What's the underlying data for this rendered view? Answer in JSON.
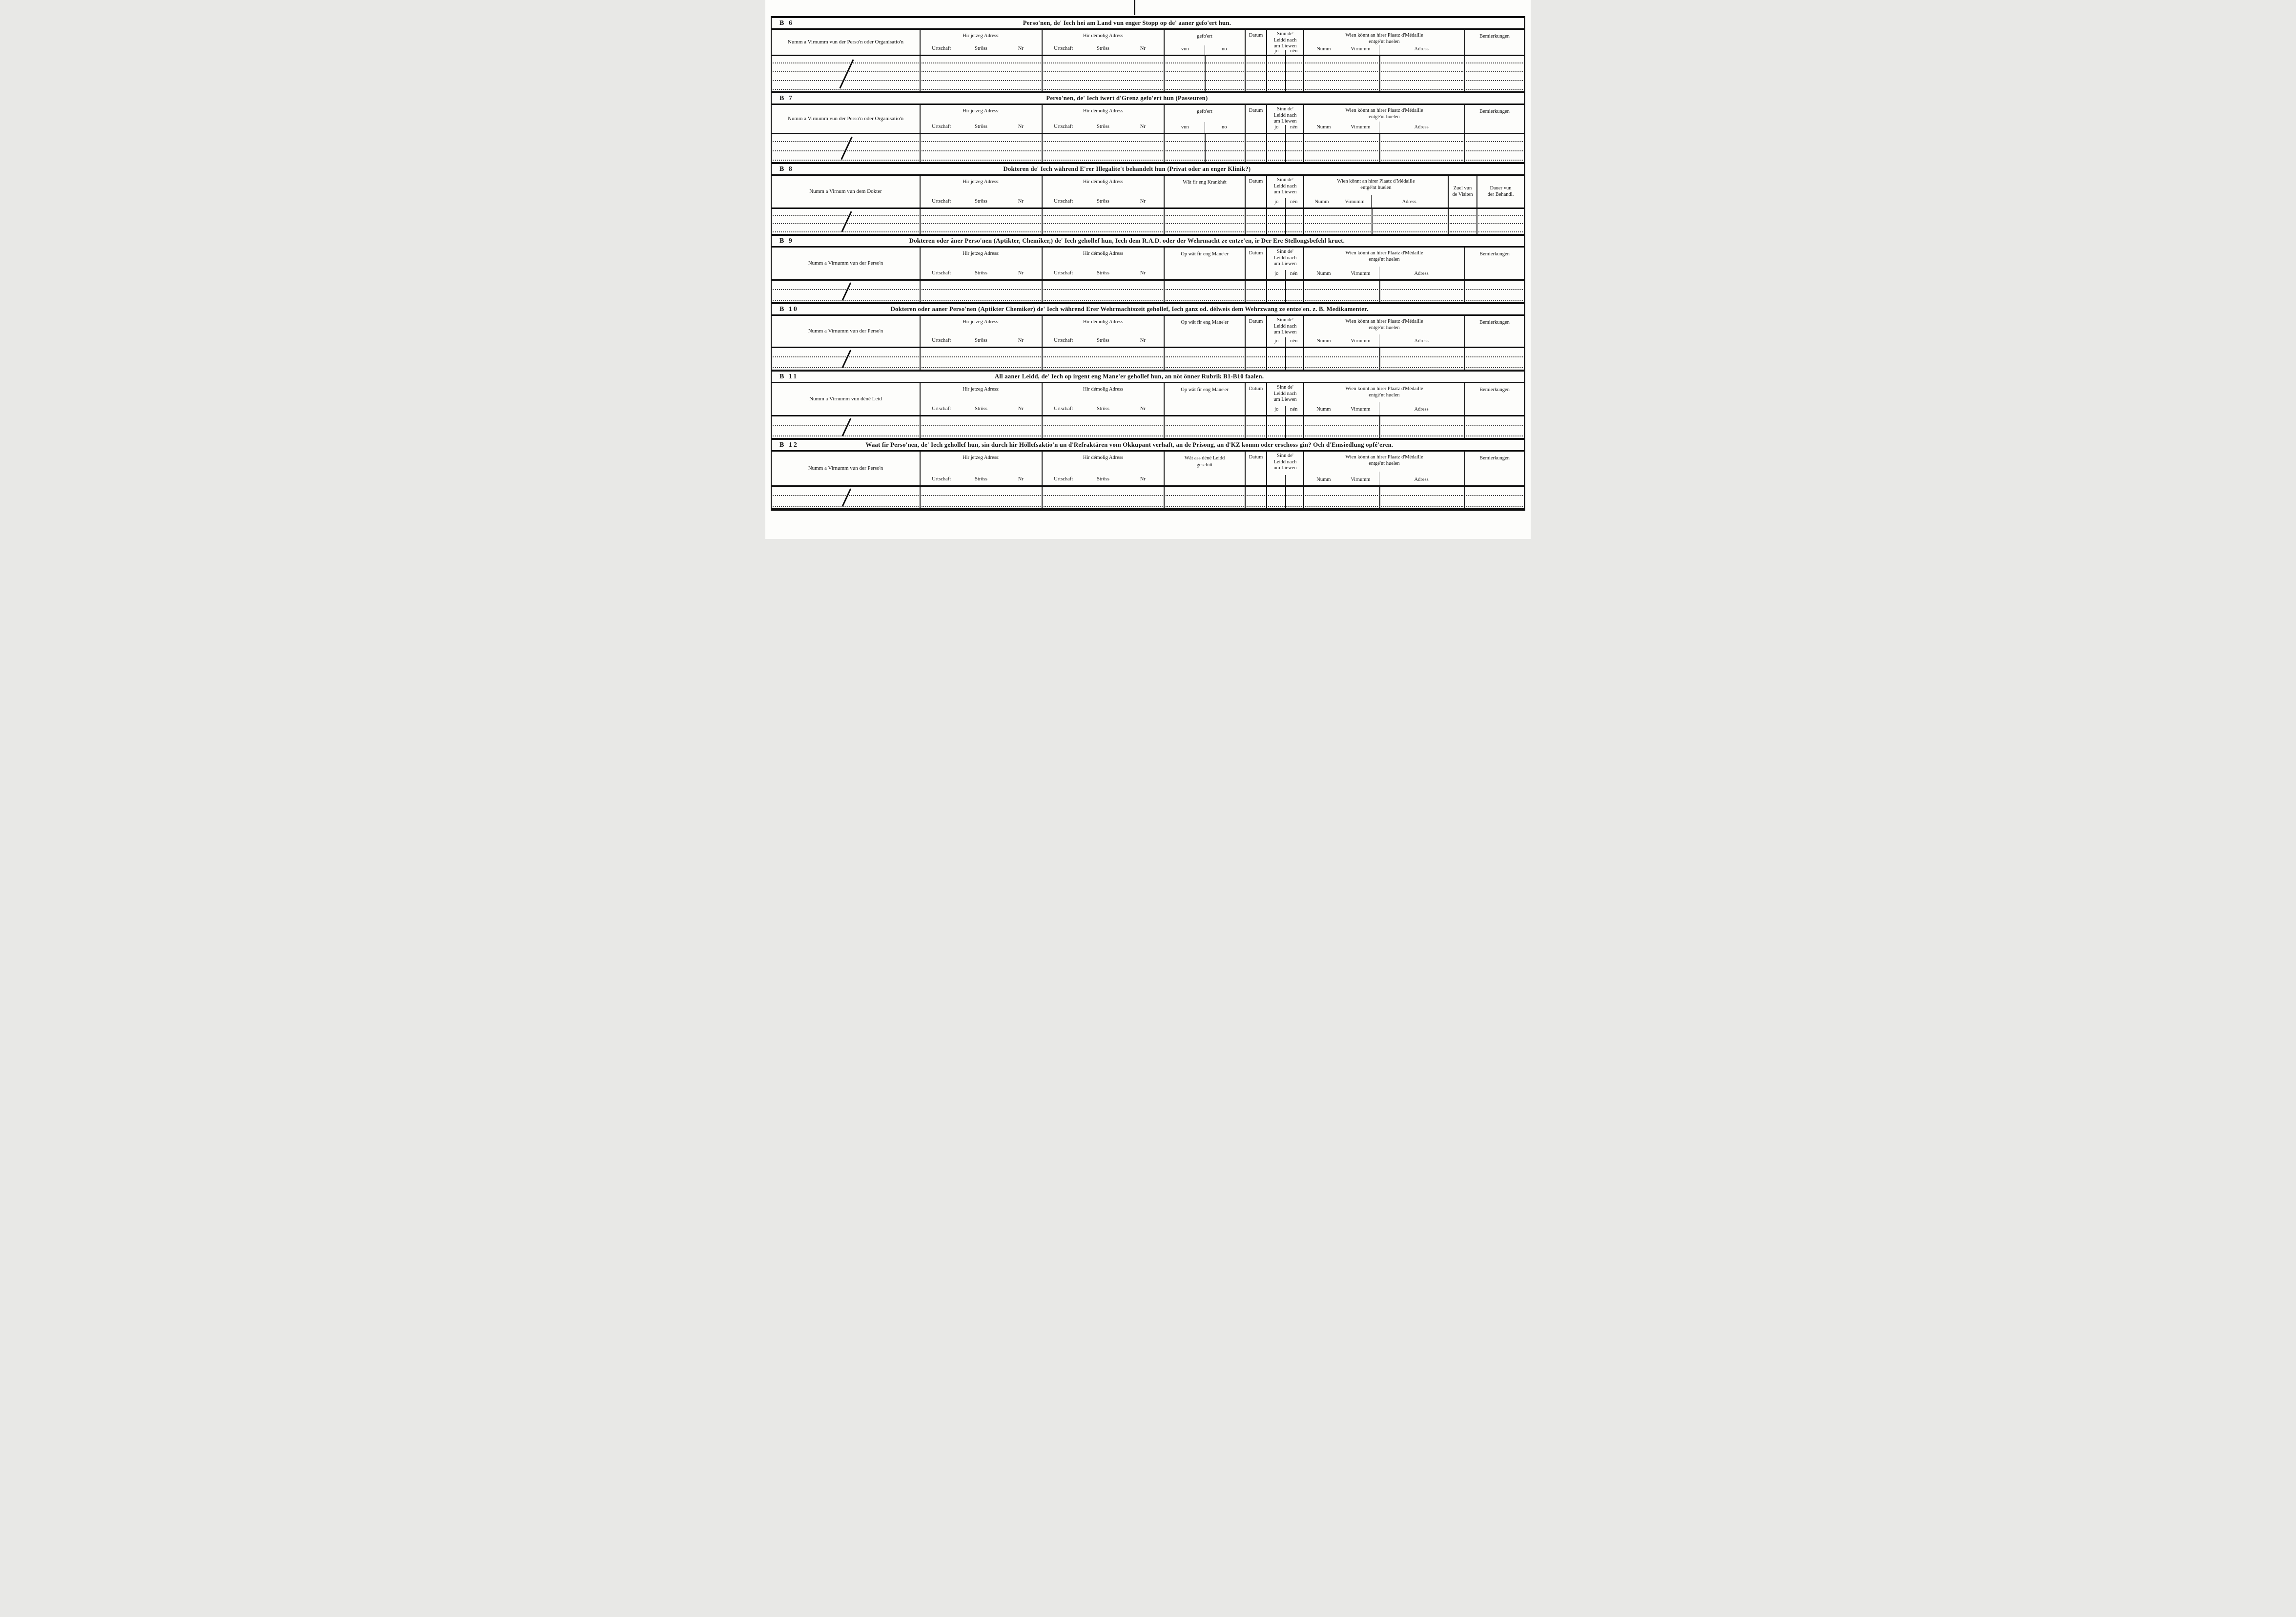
{
  "document": {
    "kind": "scanned questionnaire form",
    "language": "Luxembourgish",
    "ink_color": "#0f0f0f",
    "paper_color": "#fdfdfb"
  },
  "common": {
    "address_now": "Hir jetzeg Adress:",
    "address_former": "Hir démolig Adress",
    "address_sub": [
      "Urtschaft",
      "Strôss",
      "Nr"
    ],
    "datum": "Datum",
    "sinn_lines": [
      "Sinn de'",
      "Leidd nach",
      "um Liewen"
    ],
    "jo": "jo",
    "nen": "nén",
    "wien_lines": [
      "Wien könnt an hirer Plaatz d'Médaille",
      "entgé'nt huelen"
    ],
    "wien_sub": [
      "Numm",
      "Virnumm",
      "Adress"
    ],
    "bemierkungen": "Bemierkungen",
    "zuel_lines": [
      "Zuel vun",
      "de Visiten"
    ],
    "dauer_lines": [
      "Dauer vun",
      "der Behandl."
    ]
  },
  "sections": [
    {
      "id": "B 6",
      "title": "Perso'nen, de' Iech hei am Land vun enger Stopp op de' aaner gefo'ert hun.",
      "left_label": "Numm a Virnumm vun der Perso'n oder Organisatio'n",
      "col4": {
        "lines": [
          "gefo'ert"
        ],
        "sub": [
          "vun",
          "no"
        ]
      },
      "jo_nen": true
    },
    {
      "id": "B 7",
      "title": "Perso'nen, de' Iech iwert d'Grenz gefo'ert hun (Passeuren)",
      "left_label": "Numm a Virnumm vun der Perso'n oder Organisatio'n",
      "col4": {
        "lines": [
          "gefo'ert"
        ],
        "sub": [
          "vun",
          "no"
        ]
      },
      "jo_nen": true
    },
    {
      "id": "B 8",
      "title": "Dokteren de' Iech während E'rer Illegalite't behandelt hun (Privat oder an enger Klinik?)",
      "left_label": "Numm a Virnum vun dem Dokter",
      "col4": {
        "lines": [
          "Wât fir eng Krankhét"
        ]
      },
      "jo_nen": true
    },
    {
      "id": "B 9",
      "title": "Dokteren oder âner Perso'nen (Aptikter, Chemiker,) de' Iech gehollef hun, Iech dem R.A.D. oder der Wehrmacht ze entze'en, ir Der Ere Stellongsbefehl kruet.",
      "left_label": "Numm a Virnumm vun der Perso'n",
      "col4": {
        "lines": [
          "Op wât fir eng Mane'er"
        ]
      },
      "jo_nen": true
    },
    {
      "id": "B 10",
      "title": "Dokteren oder aaner Perso'nen (Aptikter Chemiker) de' Iech während Erer Wehrmachtszeit gehollef, Iech ganz od. délweis dem Wehrzwang ze entze'en. z. B. Medikamenter.",
      "left_label": "Numm a Virnumm vun der Perso'n",
      "col4": {
        "lines": [
          "Op wât fir eng Mane'er"
        ]
      },
      "jo_nen": true
    },
    {
      "id": "B 11",
      "title": "All aaner Leidd, de' Iech op irgent eng Mane'er gehollef hun, an nöt önner Rubrik B1-B10 faalen.",
      "left_label": "Numm a Virnumm vun déné Leid",
      "col4": {
        "lines": [
          "Op wât fir eng Mane'er"
        ]
      },
      "jo_nen": true
    },
    {
      "id": "B 12",
      "title": "Waat fir Perso'nen, de' Iech gehollef hun, sin durch hir Höllefsaktio'n un d'Refraktären vom Okkupant verhaft, an de Prisong, an d'KZ komm oder erschoss gin? Och d'Emsiedlung opfé'eren.",
      "left_label": "Numm a Virnumm vun der Perso'n",
      "col4": {
        "lines": [
          "Wât ass déné Leidd",
          "geschitt"
        ]
      },
      "jo_nen": false
    }
  ]
}
